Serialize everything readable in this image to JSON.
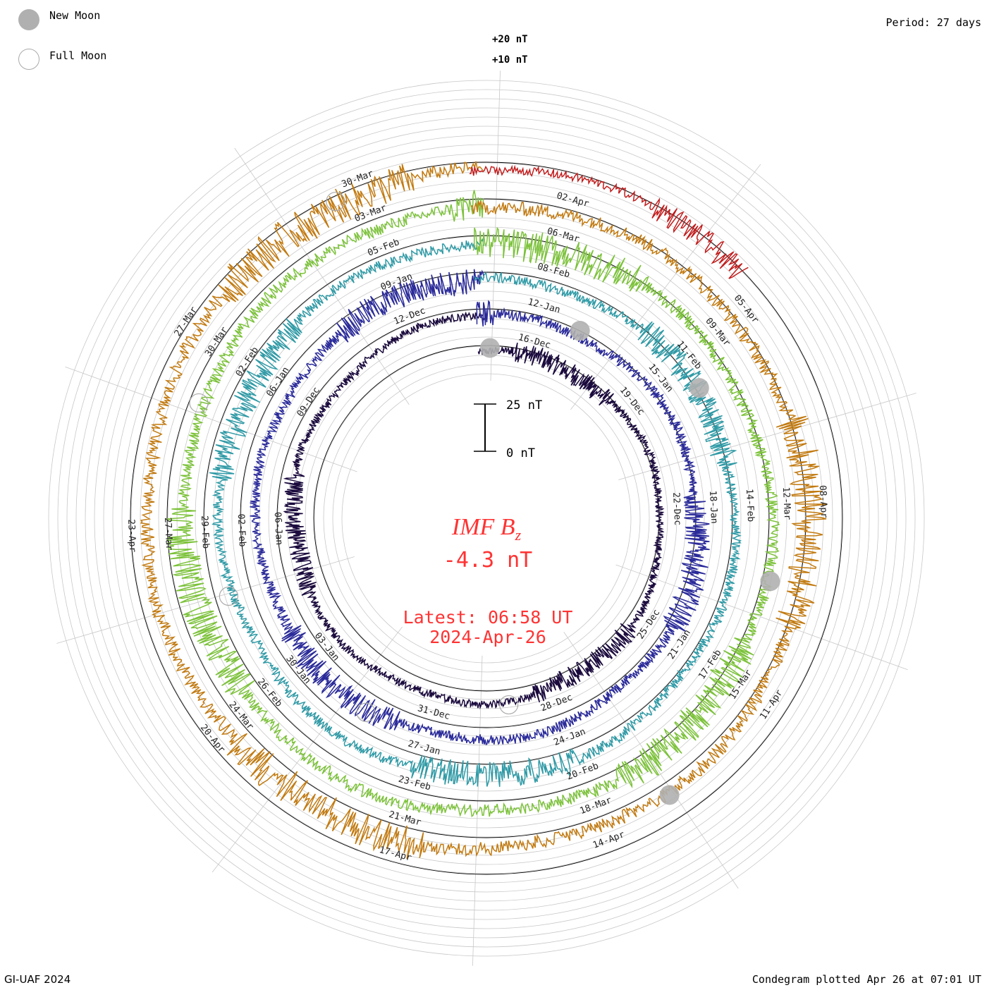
{
  "legend": {
    "new_moon_label": "New Moon",
    "full_moon_label": "Full Moon",
    "new_moon_color": "#b0b0b0",
    "full_moon_stroke": "#aaaaaa"
  },
  "period_label": "Period: 27 days",
  "credit": "GI-UAF 2024",
  "plotted_label": "Condegram plotted Apr 26 at 07:01 UT",
  "center": {
    "title": "IMF B",
    "title_sub": "z",
    "value": "-4.3 nT",
    "latest": "Latest: 06:58 UT",
    "date": "2024-Apr-26",
    "color": "#ff3333"
  },
  "scale_bar": {
    "top_label": "25 nT",
    "bottom_label": "0 nT"
  },
  "chart_data": {
    "type": "line",
    "title": "IMF Bz",
    "period_days": 27,
    "units": "nT",
    "reference_labels": [
      "+20 nT",
      "+10 nT"
    ],
    "scale_nT": 25,
    "cycles": [
      {
        "color": "#1a0a3d",
        "amplitude": 7,
        "labels": [
          "16-Dec",
          "19-Dec",
          "22-Dec",
          "25-Dec",
          "28-Dec",
          "31-Dec",
          "03-Jan",
          "06-Jan",
          "09-Dec",
          "12-Dec"
        ]
      },
      {
        "color": "#2a2a9a",
        "amplitude": 9,
        "labels": [
          "12-Jan",
          "15-Jan",
          "18-Jan",
          "21-Jan",
          "24-Jan",
          "27-Jan",
          "30-Jan",
          "02-Feb",
          "06-Jan",
          "09-Jan"
        ]
      },
      {
        "color": "#2f9aa6",
        "amplitude": 9,
        "labels": [
          "08-Feb",
          "11-Feb",
          "14-Feb",
          "17-Feb",
          "20-Feb",
          "23-Feb",
          "26-Feb",
          "29-Feb",
          "02-Feb",
          "05-Feb"
        ]
      },
      {
        "color": "#7cc23a",
        "amplitude": 11,
        "labels": [
          "06-Mar",
          "09-Mar",
          "12-Mar",
          "15-Mar",
          "18-Mar",
          "21-Mar",
          "24-Mar",
          "27-Mar",
          "30-Mar",
          "03-Mar"
        ]
      },
      {
        "color": "#c27a10",
        "amplitude": 12,
        "labels": [
          "02-Apr",
          "05-Apr",
          "08-Apr",
          "11-Apr",
          "14-Apr",
          "17-Apr",
          "20-Apr",
          "23-Apr",
          "27-Mar",
          "30-Mar"
        ]
      },
      {
        "color": "#c21d1d",
        "amplitude": 8,
        "labels": []
      }
    ],
    "new_moons": [
      {
        "cycle": 0,
        "day": 0.3
      },
      {
        "cycle": 1,
        "day": 2.2
      },
      {
        "cycle": 2,
        "day": 4.6
      },
      {
        "cycle": 3,
        "day": 7.9
      },
      {
        "cycle": 4,
        "day": 11.2
      }
    ],
    "full_moons": [
      {
        "cycle": 0,
        "day": 13.2
      },
      {
        "cycle": 1,
        "day": 16.1
      },
      {
        "cycle": 2,
        "day": 19.2
      },
      {
        "cycle": 3,
        "day": 22.1
      },
      {
        "cycle": 4,
        "day": 25.3
      }
    ]
  }
}
